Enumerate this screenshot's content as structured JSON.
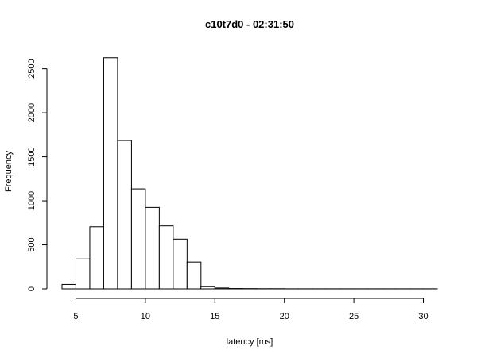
{
  "chart_data": {
    "type": "bar",
    "title": "c10t7d0 - 02:31:50",
    "xlabel": "latency [ms]",
    "ylabel": "Frequency",
    "xlim": [
      4,
      31
    ],
    "ylim": [
      0,
      2650
    ],
    "xticks": [
      5,
      10,
      15,
      20,
      25,
      30
    ],
    "yticks": [
      0,
      500,
      1000,
      1500,
      2000,
      2500
    ],
    "grid": false,
    "legend": "none",
    "bin_width": 1,
    "bins": [
      {
        "start": 4,
        "count": 50
      },
      {
        "start": 5,
        "count": 340
      },
      {
        "start": 6,
        "count": 705
      },
      {
        "start": 7,
        "count": 2625
      },
      {
        "start": 8,
        "count": 1685
      },
      {
        "start": 9,
        "count": 1135
      },
      {
        "start": 10,
        "count": 925
      },
      {
        "start": 11,
        "count": 715
      },
      {
        "start": 12,
        "count": 565
      },
      {
        "start": 13,
        "count": 305
      },
      {
        "start": 14,
        "count": 25
      },
      {
        "start": 15,
        "count": 10
      },
      {
        "start": 16,
        "count": 4
      },
      {
        "start": 17,
        "count": 3
      },
      {
        "start": 18,
        "count": 2
      },
      {
        "start": 19,
        "count": 2
      },
      {
        "start": 20,
        "count": 1
      },
      {
        "start": 21,
        "count": 1
      },
      {
        "start": 22,
        "count": 1
      },
      {
        "start": 23,
        "count": 1
      },
      {
        "start": 24,
        "count": 1
      },
      {
        "start": 25,
        "count": 1
      },
      {
        "start": 26,
        "count": 1
      },
      {
        "start": 27,
        "count": 1
      },
      {
        "start": 28,
        "count": 1
      },
      {
        "start": 29,
        "count": 1
      },
      {
        "start": 30,
        "count": 1
      }
    ]
  }
}
